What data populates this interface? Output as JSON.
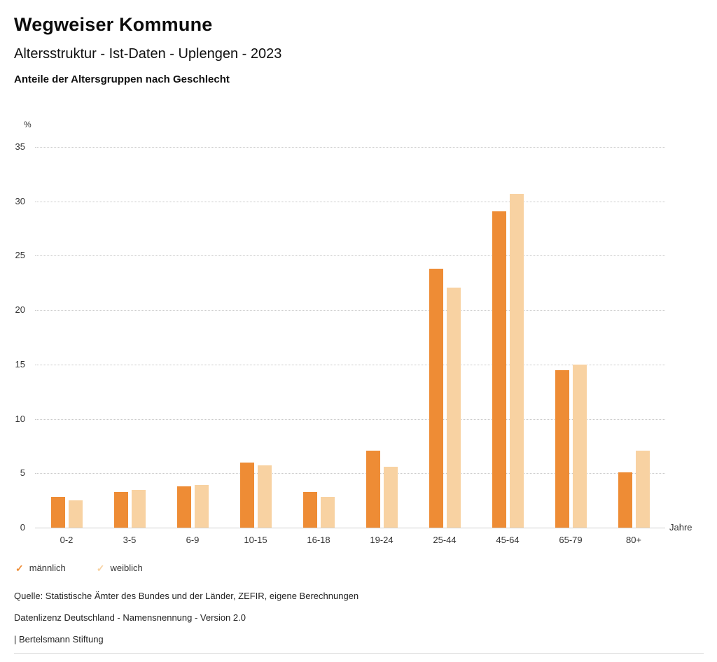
{
  "header": {
    "title": "Wegweiser Kommune",
    "subtitle": "Altersstruktur - Ist-Daten - Uplengen - 2023",
    "chart_heading": "Anteile der Altersgruppen nach Geschlecht"
  },
  "chart_data": {
    "type": "bar",
    "title": "Anteile der Altersgruppen nach Geschlecht",
    "categories": [
      "0-2",
      "3-5",
      "6-9",
      "10-15",
      "16-18",
      "19-24",
      "25-44",
      "45-64",
      "65-79",
      "80+"
    ],
    "series": [
      {
        "name": "männlich",
        "color": "#EE8C35",
        "values": [
          2.8,
          3.3,
          3.8,
          6.0,
          3.3,
          7.1,
          23.8,
          29.1,
          14.5,
          5.1
        ]
      },
      {
        "name": "weiblich",
        "color": "#F8D2A2",
        "values": [
          2.5,
          3.5,
          3.9,
          5.7,
          2.8,
          5.6,
          22.1,
          30.7,
          15.0,
          7.1
        ]
      }
    ],
    "ylabel": "%",
    "xlabel": "Jahre",
    "ylim": [
      0,
      35
    ],
    "yticks": [
      0,
      5,
      10,
      15,
      20,
      25,
      30,
      35
    ],
    "grid": true,
    "legend_position": "bottom",
    "legend_check_glyph": "✓"
  },
  "footer": {
    "source": "Quelle: Statistische Ämter des Bundes und der Länder, ZEFIR, eigene Berechnungen",
    "license": "Datenlizenz Deutschland - Namensnennung - Version 2.0",
    "attribution": "| Bertelsmann Stiftung"
  }
}
